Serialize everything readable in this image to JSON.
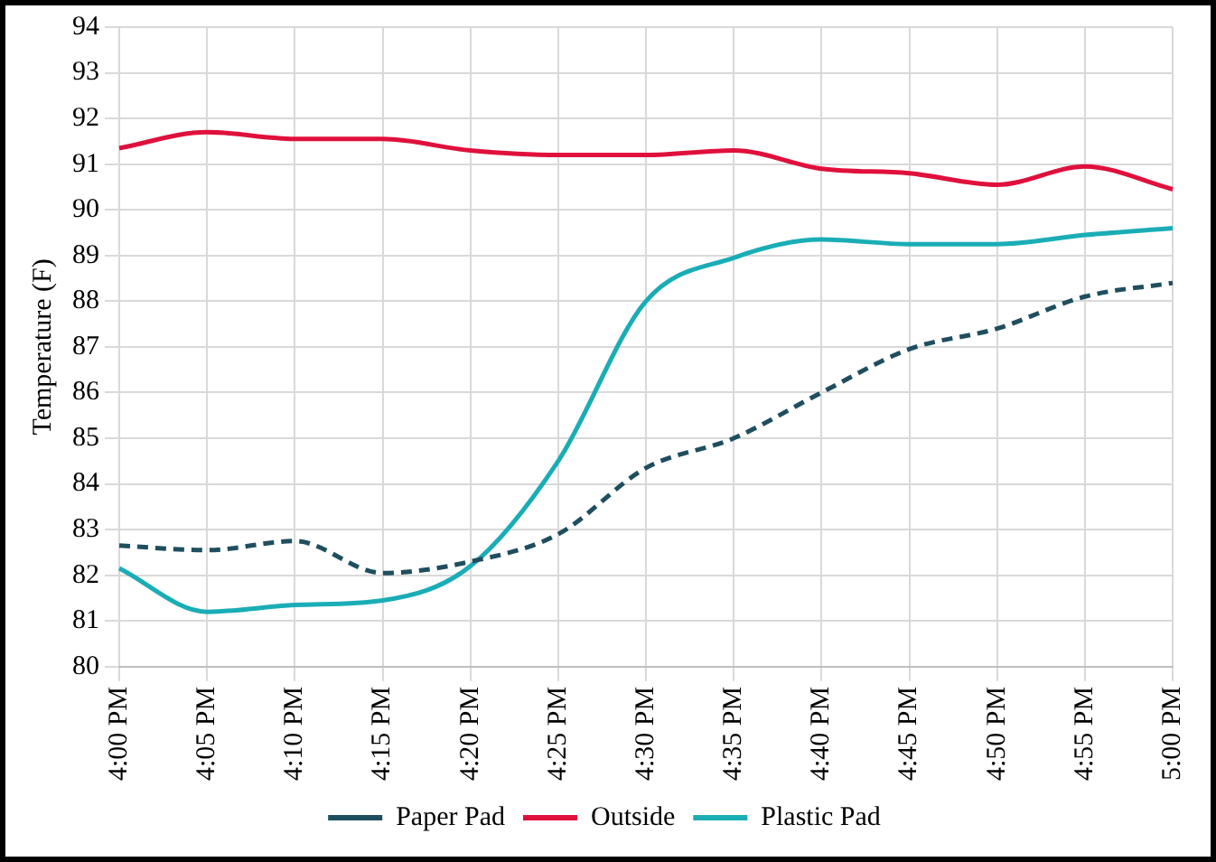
{
  "chart_data": {
    "type": "line",
    "ylabel": "Temperature (F)",
    "categories": [
      "4:00 PM",
      "4:05 PM",
      "4:10 PM",
      "4:15 PM",
      "4:20 PM",
      "4:25 PM",
      "4:30 PM",
      "4:35 PM",
      "4:40 PM",
      "4:45 PM",
      "4:50 PM",
      "4:55 PM",
      "5:00 PM"
    ],
    "series": [
      {
        "name": "Paper Pad",
        "color": "#1f4e5f",
        "line_style": "dashed",
        "values": [
          82.65,
          82.55,
          82.75,
          82.05,
          82.3,
          82.9,
          84.35,
          85,
          86,
          86.95,
          87.4,
          88.1,
          88.4
        ]
      },
      {
        "name": "Outside",
        "color": "#e0103c",
        "line_style": "solid",
        "values": [
          91.35,
          91.7,
          91.55,
          91.55,
          91.3,
          91.2,
          91.2,
          91.3,
          90.9,
          90.8,
          90.55,
          90.95,
          90.45
        ]
      },
      {
        "name": "Plastic Pad",
        "color": "#1aadb5",
        "line_style": "solid",
        "values": [
          82.15,
          81.2,
          81.35,
          81.45,
          82.2,
          84.5,
          88,
          88.95,
          89.35,
          89.25,
          89.25,
          89.45,
          89.6
        ]
      }
    ],
    "ylim": [
      80,
      94
    ],
    "yticks": [
      80,
      81,
      82,
      83,
      84,
      85,
      86,
      87,
      88,
      89,
      90,
      91,
      92,
      93,
      94
    ],
    "grid": true,
    "legend": "bottom",
    "marker": "none"
  }
}
